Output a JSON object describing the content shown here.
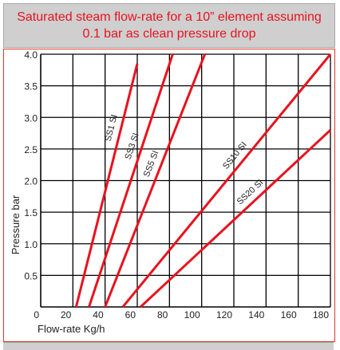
{
  "header": {
    "title_line1": "Saturated steam flow-rate for a 10” element assuming",
    "title_line2": "0.1 bar as clean pressure drop",
    "title_color": "#e8121e",
    "band_color": "#cfcfcf"
  },
  "chart_data": {
    "type": "line",
    "title": "Saturated steam flow-rate for a 10” element assuming 0.1 bar as clean pressure drop",
    "xlabel": "Flow-rate Kg/h",
    "ylabel": "Pressure bar",
    "xlim": [
      0,
      180
    ],
    "ylim": [
      0,
      4.0
    ],
    "x_ticks": [
      "0",
      "20",
      "40",
      "60",
      "80",
      "100",
      "120",
      "140",
      "160",
      "180"
    ],
    "y_ticks": [
      "0.5",
      "1.0",
      "1.5",
      "2.0",
      "2.5",
      "3.0",
      "3.5",
      "4.0"
    ],
    "grid": true,
    "line_color": "#e8121e",
    "series": [
      {
        "name": "SS1 SI",
        "x": [
          22,
          60
        ],
        "y": [
          0,
          3.85
        ]
      },
      {
        "name": "SS3 SI",
        "x": [
          30,
          82
        ],
        "y": [
          0,
          4.0
        ]
      },
      {
        "name": "SS5 SI",
        "x": [
          40,
          102
        ],
        "y": [
          0,
          4.0
        ]
      },
      {
        "name": "SS10 SI",
        "x": [
          51,
          180
        ],
        "y": [
          0,
          4.0
        ]
      },
      {
        "name": "SS20 SI",
        "x": [
          62,
          180
        ],
        "y": [
          0,
          2.8
        ]
      }
    ]
  }
}
